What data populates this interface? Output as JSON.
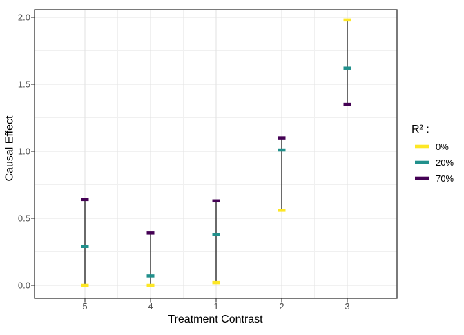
{
  "chart_data": {
    "type": "scatter",
    "title": "",
    "xlabel": "Treatment Contrast",
    "ylabel": "Causal Effect",
    "categories": [
      "5",
      "4",
      "1",
      "2",
      "3"
    ],
    "ylim": [
      -0.1,
      2.06
    ],
    "yticks": [
      0.0,
      0.5,
      1.0,
      1.5,
      2.0
    ],
    "ytick_labels": [
      "0.0",
      "0.5",
      "1.0",
      "1.5",
      "2.0"
    ],
    "yticks_minor": [
      0.25,
      0.75,
      1.25,
      1.75
    ],
    "grid": true,
    "legend_position": "right",
    "legend_title": "R² :",
    "point_shape": "horizontal-dash",
    "range_line_color": "#2b2b2b",
    "series": [
      {
        "name": "0%",
        "color": "#FDE725",
        "values": [
          0.0,
          0.0,
          0.02,
          0.56,
          1.98
        ]
      },
      {
        "name": "20%",
        "color": "#21908C",
        "values": [
          0.29,
          0.07,
          0.38,
          1.01,
          1.62
        ]
      },
      {
        "name": "70%",
        "color": "#440154",
        "values": [
          0.64,
          0.39,
          0.63,
          1.1,
          1.35
        ]
      }
    ]
  }
}
